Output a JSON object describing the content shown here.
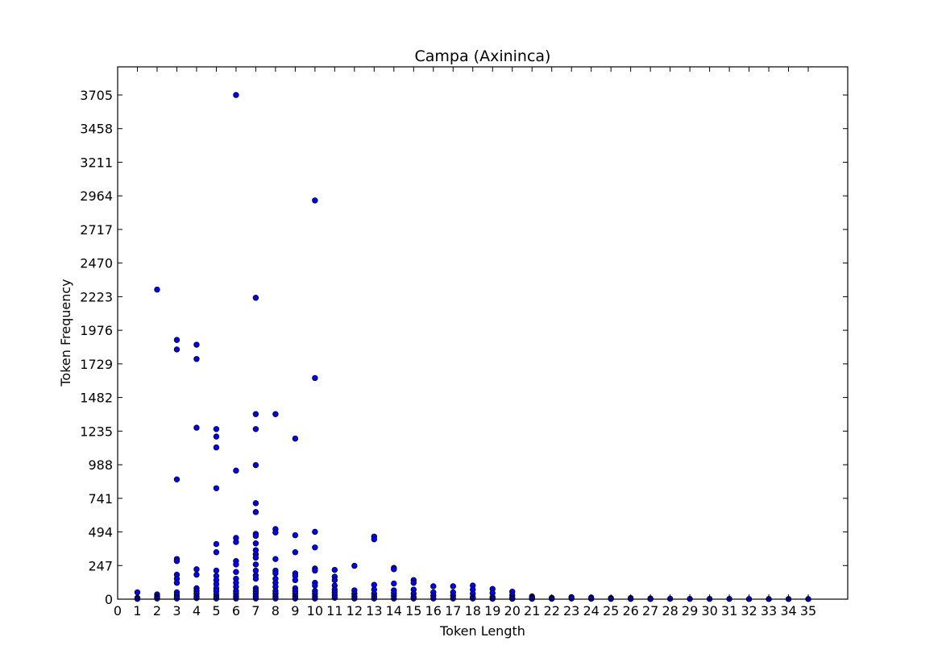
{
  "chart_data": {
    "type": "scatter",
    "title": "Campa (Axininca)",
    "xlabel": "Token Length",
    "ylabel": "Token Frequency",
    "xlim": [
      0,
      37
    ],
    "ylim": [
      0,
      3912
    ],
    "xticks": [
      0,
      1,
      2,
      3,
      4,
      5,
      6,
      7,
      8,
      9,
      10,
      11,
      12,
      13,
      14,
      15,
      16,
      17,
      18,
      19,
      20,
      21,
      22,
      23,
      24,
      25,
      26,
      27,
      28,
      29,
      30,
      31,
      32,
      33,
      34,
      35
    ],
    "yticks": [
      0,
      247,
      494,
      741,
      988,
      1235,
      1482,
      1729,
      1976,
      2223,
      2470,
      2717,
      2964,
      3211,
      3458,
      3705
    ],
    "grid": false,
    "marker_color": "#0000ff",
    "points": [
      [
        1,
        50
      ],
      [
        1,
        10
      ],
      [
        1,
        2
      ],
      [
        2,
        2275
      ],
      [
        2,
        35
      ],
      [
        2,
        20
      ],
      [
        2,
        10
      ],
      [
        2,
        5
      ],
      [
        3,
        1905
      ],
      [
        3,
        1835
      ],
      [
        3,
        880
      ],
      [
        3,
        295
      ],
      [
        3,
        280
      ],
      [
        3,
        180
      ],
      [
        3,
        150
      ],
      [
        3,
        120
      ],
      [
        3,
        50
      ],
      [
        3,
        30
      ],
      [
        3,
        15
      ],
      [
        3,
        5
      ],
      [
        4,
        1870
      ],
      [
        4,
        1765
      ],
      [
        4,
        1260
      ],
      [
        4,
        220
      ],
      [
        4,
        180
      ],
      [
        4,
        80
      ],
      [
        4,
        60
      ],
      [
        4,
        40
      ],
      [
        4,
        20
      ],
      [
        4,
        8
      ],
      [
        5,
        1250
      ],
      [
        5,
        1195
      ],
      [
        5,
        1115
      ],
      [
        5,
        815
      ],
      [
        5,
        405
      ],
      [
        5,
        345
      ],
      [
        5,
        210
      ],
      [
        5,
        170
      ],
      [
        5,
        140
      ],
      [
        5,
        110
      ],
      [
        5,
        80
      ],
      [
        5,
        60
      ],
      [
        5,
        35
      ],
      [
        5,
        15
      ],
      [
        5,
        5
      ],
      [
        6,
        3705
      ],
      [
        6,
        945
      ],
      [
        6,
        450
      ],
      [
        6,
        420
      ],
      [
        6,
        280
      ],
      [
        6,
        255
      ],
      [
        6,
        200
      ],
      [
        6,
        150
      ],
      [
        6,
        120
      ],
      [
        6,
        90
      ],
      [
        6,
        60
      ],
      [
        6,
        40
      ],
      [
        6,
        20
      ],
      [
        6,
        5
      ],
      [
        7,
        2215
      ],
      [
        7,
        1360
      ],
      [
        7,
        1250
      ],
      [
        7,
        985
      ],
      [
        7,
        705
      ],
      [
        7,
        640
      ],
      [
        7,
        480
      ],
      [
        7,
        465
      ],
      [
        7,
        410
      ],
      [
        7,
        360
      ],
      [
        7,
        330
      ],
      [
        7,
        305
      ],
      [
        7,
        255
      ],
      [
        7,
        210
      ],
      [
        7,
        175
      ],
      [
        7,
        150
      ],
      [
        7,
        80
      ],
      [
        7,
        60
      ],
      [
        7,
        40
      ],
      [
        7,
        20
      ],
      [
        7,
        5
      ],
      [
        8,
        1360
      ],
      [
        8,
        515
      ],
      [
        8,
        490
      ],
      [
        8,
        295
      ],
      [
        8,
        210
      ],
      [
        8,
        190
      ],
      [
        8,
        150
      ],
      [
        8,
        120
      ],
      [
        8,
        90
      ],
      [
        8,
        60
      ],
      [
        8,
        40
      ],
      [
        8,
        20
      ],
      [
        8,
        5
      ],
      [
        9,
        1180
      ],
      [
        9,
        470
      ],
      [
        9,
        345
      ],
      [
        9,
        190
      ],
      [
        9,
        170
      ],
      [
        9,
        140
      ],
      [
        9,
        80
      ],
      [
        9,
        60
      ],
      [
        9,
        40
      ],
      [
        9,
        20
      ],
      [
        9,
        5
      ],
      [
        10,
        2930
      ],
      [
        10,
        1625
      ],
      [
        10,
        495
      ],
      [
        10,
        380
      ],
      [
        10,
        225
      ],
      [
        10,
        210
      ],
      [
        10,
        120
      ],
      [
        10,
        100
      ],
      [
        10,
        60
      ],
      [
        10,
        40
      ],
      [
        10,
        20
      ],
      [
        10,
        5
      ],
      [
        11,
        215
      ],
      [
        11,
        165
      ],
      [
        11,
        140
      ],
      [
        11,
        100
      ],
      [
        11,
        70
      ],
      [
        11,
        50
      ],
      [
        11,
        30
      ],
      [
        11,
        10
      ],
      [
        12,
        245
      ],
      [
        12,
        65
      ],
      [
        12,
        40
      ],
      [
        12,
        20
      ],
      [
        12,
        5
      ],
      [
        13,
        460
      ],
      [
        13,
        440
      ],
      [
        13,
        105
      ],
      [
        13,
        70
      ],
      [
        13,
        40
      ],
      [
        13,
        20
      ],
      [
        13,
        5
      ],
      [
        14,
        230
      ],
      [
        14,
        220
      ],
      [
        14,
        115
      ],
      [
        14,
        65
      ],
      [
        14,
        45
      ],
      [
        14,
        25
      ],
      [
        14,
        5
      ],
      [
        15,
        140
      ],
      [
        15,
        120
      ],
      [
        15,
        70
      ],
      [
        15,
        40
      ],
      [
        15,
        15
      ],
      [
        15,
        5
      ],
      [
        16,
        95
      ],
      [
        16,
        50
      ],
      [
        16,
        25
      ],
      [
        16,
        5
      ],
      [
        17,
        95
      ],
      [
        17,
        50
      ],
      [
        17,
        25
      ],
      [
        17,
        5
      ],
      [
        18,
        100
      ],
      [
        18,
        70
      ],
      [
        18,
        40
      ],
      [
        18,
        15
      ],
      [
        18,
        5
      ],
      [
        19,
        75
      ],
      [
        19,
        45
      ],
      [
        19,
        15
      ],
      [
        19,
        3
      ],
      [
        20,
        55
      ],
      [
        20,
        30
      ],
      [
        20,
        10
      ],
      [
        20,
        3
      ],
      [
        21,
        20
      ],
      [
        21,
        10
      ],
      [
        21,
        3
      ],
      [
        22,
        10
      ],
      [
        22,
        3
      ],
      [
        23,
        15
      ],
      [
        23,
        5
      ],
      [
        24,
        12
      ],
      [
        24,
        3
      ],
      [
        25,
        8
      ],
      [
        25,
        2
      ],
      [
        26,
        8
      ],
      [
        26,
        2
      ],
      [
        27,
        5
      ],
      [
        27,
        1
      ],
      [
        28,
        3
      ],
      [
        29,
        2
      ],
      [
        30,
        2
      ],
      [
        31,
        2
      ],
      [
        32,
        1
      ],
      [
        33,
        1
      ],
      [
        34,
        1
      ],
      [
        35,
        1
      ]
    ]
  }
}
